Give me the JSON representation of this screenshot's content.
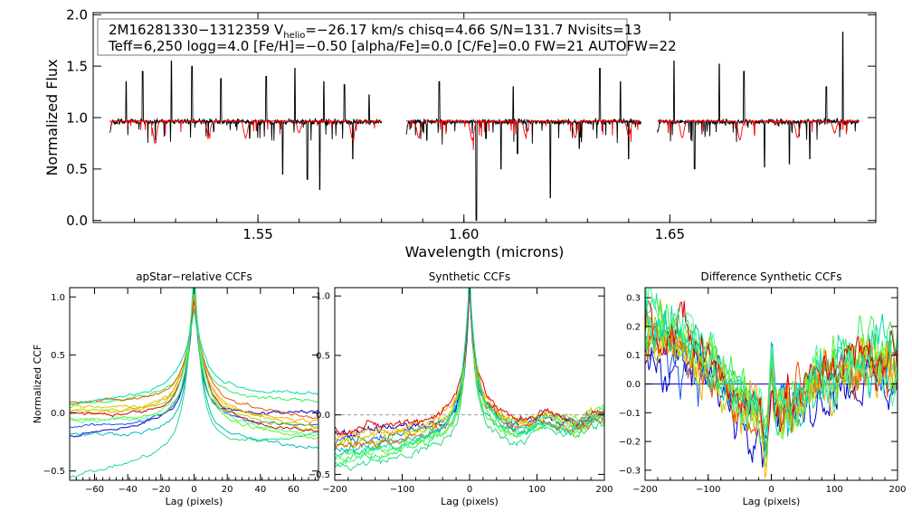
{
  "chart_data": [
    {
      "type": "line",
      "title": "",
      "xlabel": "Wavelength (microns)",
      "ylabel": "Normalized Flux",
      "xlim": [
        1.51,
        1.7
      ],
      "ylim": [
        -0.02,
        2.02
      ],
      "xticks": [
        1.55,
        1.6,
        1.65
      ],
      "xtick_labels": [
        "1.55",
        "1.60",
        "1.65"
      ],
      "yticks": [
        0.0,
        0.5,
        1.0,
        1.5,
        2.0
      ],
      "ytick_labels": [
        "0.0",
        "0.5",
        "1.0",
        "1.5",
        "2.0"
      ],
      "annotation": {
        "line1_before": "2M16281330−1312359  V",
        "line1_sub": "helio",
        "line1_after": "=−26.17 km/s  chisq=4.66  S/N=131.7  Nvisits=13",
        "line2": "Teff=6,250 logg=4.0 [Fe/H]=−0.50 [alpha/Fe]=0.0 [C/Fe]=0.0 FW=21 AUTOFW=22"
      },
      "chips": [
        [
          1.514,
          1.58
        ],
        [
          1.586,
          1.643
        ],
        [
          1.647,
          1.696
        ]
      ],
      "continuum": 0.96,
      "series": [
        {
          "name": "observed",
          "color": "#000000",
          "features": [
            [
              1.518,
              1.35
            ],
            [
              1.522,
              1.45
            ],
            [
              1.529,
              1.55
            ],
            [
              1.534,
              1.5
            ],
            [
              1.541,
              1.38
            ],
            [
              1.552,
              1.4
            ],
            [
              1.559,
              1.48
            ],
            [
              1.566,
              1.35
            ],
            [
              1.571,
              1.32
            ],
            [
              1.577,
              1.22
            ],
            [
              1.548,
              0.8
            ],
            [
              1.556,
              0.45
            ],
            [
              1.562,
              0.4
            ],
            [
              1.565,
              0.3
            ],
            [
              1.573,
              0.6
            ],
            [
              1.591,
              0.78
            ],
            [
              1.603,
              0.0
            ],
            [
              1.609,
              0.5
            ],
            [
              1.613,
              0.65
            ],
            [
              1.621,
              0.22
            ],
            [
              1.628,
              0.7
            ],
            [
              1.633,
              1.48
            ],
            [
              1.638,
              1.35
            ],
            [
              1.594,
              1.35
            ],
            [
              1.612,
              1.3
            ],
            [
              1.64,
              0.6
            ],
            [
              1.651,
              1.55
            ],
            [
              1.656,
              0.5
            ],
            [
              1.662,
              1.52
            ],
            [
              1.668,
              1.45
            ],
            [
              1.673,
              0.52
            ],
            [
              1.679,
              0.55
            ],
            [
              1.684,
              0.6
            ],
            [
              1.688,
              1.3
            ],
            [
              1.692,
              1.83
            ]
          ]
        },
        {
          "name": "model",
          "color": "#ff0000",
          "features": [
            [
              1.525,
              0.75
            ],
            [
              1.538,
              0.82
            ],
            [
              1.547,
              0.8
            ],
            [
              1.56,
              0.85
            ],
            [
              1.573,
              0.78
            ],
            [
              1.589,
              0.8
            ],
            [
              1.602,
              0.78
            ],
            [
              1.615,
              0.82
            ],
            [
              1.627,
              0.8
            ],
            [
              1.64,
              0.82
            ],
            [
              1.653,
              0.8
            ],
            [
              1.667,
              0.78
            ],
            [
              1.681,
              0.8
            ],
            [
              1.69,
              0.85
            ]
          ]
        }
      ]
    },
    {
      "type": "line",
      "title": "apStar−relative CCFs",
      "xlabel": "Lag (pixels)",
      "ylabel": "Normalized CCF",
      "xlim": [
        -75,
        75
      ],
      "ylim": [
        -0.58,
        1.08
      ],
      "xticks": [
        -60,
        -40,
        -20,
        0,
        20,
        40,
        60
      ],
      "xtick_labels": [
        "−60",
        "−40",
        "−20",
        "0",
        "20",
        "40",
        "60"
      ],
      "yticks": [
        -0.5,
        0.0,
        0.5,
        1.0
      ],
      "ytick_labels": [
        "−0.5",
        "0.0",
        "0.5",
        "1.0"
      ],
      "peak": 1.0,
      "peak_width": 3.5,
      "lines": [
        {
          "color": "#0000cc",
          "left": -0.2,
          "right": 0.02
        },
        {
          "color": "#1a55ee",
          "left": -0.12,
          "right": -0.1
        },
        {
          "color": "#00bbbb",
          "left": -0.18,
          "right": -0.3
        },
        {
          "color": "#22dd88",
          "left": -0.55,
          "right": -0.18
        },
        {
          "color": "#33ee55",
          "left": 0.08,
          "right": 0.1
        },
        {
          "color": "#66ee22",
          "left": -0.05,
          "right": -0.22
        },
        {
          "color": "#99dd00",
          "left": 0.02,
          "right": -0.15
        },
        {
          "color": "#cccc00",
          "left": 0.05,
          "right": -0.12
        },
        {
          "color": "#ffaa00",
          "left": 0.0,
          "right": -0.08
        },
        {
          "color": "#ee5500",
          "left": 0.1,
          "right": -0.05
        },
        {
          "color": "#dd0000",
          "left": -0.02,
          "right": -0.18
        },
        {
          "color": "#44ff99",
          "left": -0.08,
          "right": -0.2
        },
        {
          "color": "#00ddaa",
          "left": 0.07,
          "right": 0.15
        }
      ]
    },
    {
      "type": "line",
      "title": "Synthetic CCFs",
      "xlabel": "Lag (pixels)",
      "ylabel": "",
      "xlim": [
        -200,
        200
      ],
      "ylim": [
        -0.55,
        1.07
      ],
      "xticks": [
        -200,
        -100,
        0,
        100,
        200
      ],
      "xtick_labels": [
        "−200",
        "−100",
        "0",
        "100",
        "200"
      ],
      "yticks": [
        -0.5,
        0.0,
        0.5,
        1.0
      ],
      "ytick_labels": [
        "−0.5",
        "0.0",
        "0.5",
        "1.0"
      ],
      "peak": 1.0,
      "peak_width": 6,
      "lines": [
        {
          "color": "#0000cc",
          "left": -0.15,
          "right": -0.02
        },
        {
          "color": "#1a55ee",
          "left": -0.22,
          "right": 0.0
        },
        {
          "color": "#00bbbb",
          "left": -0.3,
          "right": -0.05
        },
        {
          "color": "#22dd88",
          "left": -0.45,
          "right": -0.1
        },
        {
          "color": "#33ee55",
          "left": -0.4,
          "right": -0.03
        },
        {
          "color": "#66ee22",
          "left": -0.35,
          "right": -0.08
        },
        {
          "color": "#99dd00",
          "left": -0.25,
          "right": 0.02
        },
        {
          "color": "#cccc00",
          "left": -0.2,
          "right": -0.04
        },
        {
          "color": "#ffaa00",
          "left": -0.18,
          "right": -0.01
        },
        {
          "color": "#ee5500",
          "left": -0.28,
          "right": -0.06
        },
        {
          "color": "#dd0000",
          "left": -0.12,
          "right": -0.02
        },
        {
          "color": "#44ff99",
          "left": -0.38,
          "right": 0.01
        },
        {
          "color": "#00ddaa",
          "left": -0.33,
          "right": -0.07
        }
      ]
    },
    {
      "type": "line",
      "title": "Difference Synthetic CCFs",
      "xlabel": "Lag (pixels)",
      "ylabel": "",
      "xlim": [
        -200,
        200
      ],
      "ylim": [
        -0.335,
        0.335
      ],
      "xticks": [
        -200,
        -100,
        0,
        100,
        200
      ],
      "xtick_labels": [
        "−200",
        "−100",
        "0",
        "100",
        "200"
      ],
      "yticks": [
        -0.3,
        -0.2,
        -0.1,
        0.0,
        0.1,
        0.2,
        0.3
      ],
      "ytick_labels": [
        "−0.3",
        "−0.2",
        "−0.1",
        "0.0",
        "0.1",
        "0.2",
        "0.3"
      ],
      "zero_line_color": "#2222cc",
      "lines": [
        {
          "color": "#0000cc",
          "left": 0.1,
          "right": 0.0
        },
        {
          "color": "#1a55ee",
          "left": 0.12,
          "right": 0.02
        },
        {
          "color": "#00bbbb",
          "left": 0.22,
          "right": 0.05
        },
        {
          "color": "#22dd88",
          "left": 0.28,
          "right": 0.06
        },
        {
          "color": "#33ee55",
          "left": 0.2,
          "right": 0.2
        },
        {
          "color": "#66ee22",
          "left": 0.15,
          "right": 0.1
        },
        {
          "color": "#99dd00",
          "left": 0.25,
          "right": 0.04
        },
        {
          "color": "#cccc00",
          "left": 0.18,
          "right": 0.08
        },
        {
          "color": "#ffaa00",
          "left": 0.14,
          "right": 0.03
        },
        {
          "color": "#ee5500",
          "left": 0.16,
          "right": 0.07
        },
        {
          "color": "#dd0000",
          "left": 0.24,
          "right": 0.09
        },
        {
          "color": "#44ff99",
          "left": 0.3,
          "right": 0.02
        },
        {
          "color": "#00ddaa",
          "left": 0.21,
          "right": 0.12
        }
      ]
    }
  ]
}
